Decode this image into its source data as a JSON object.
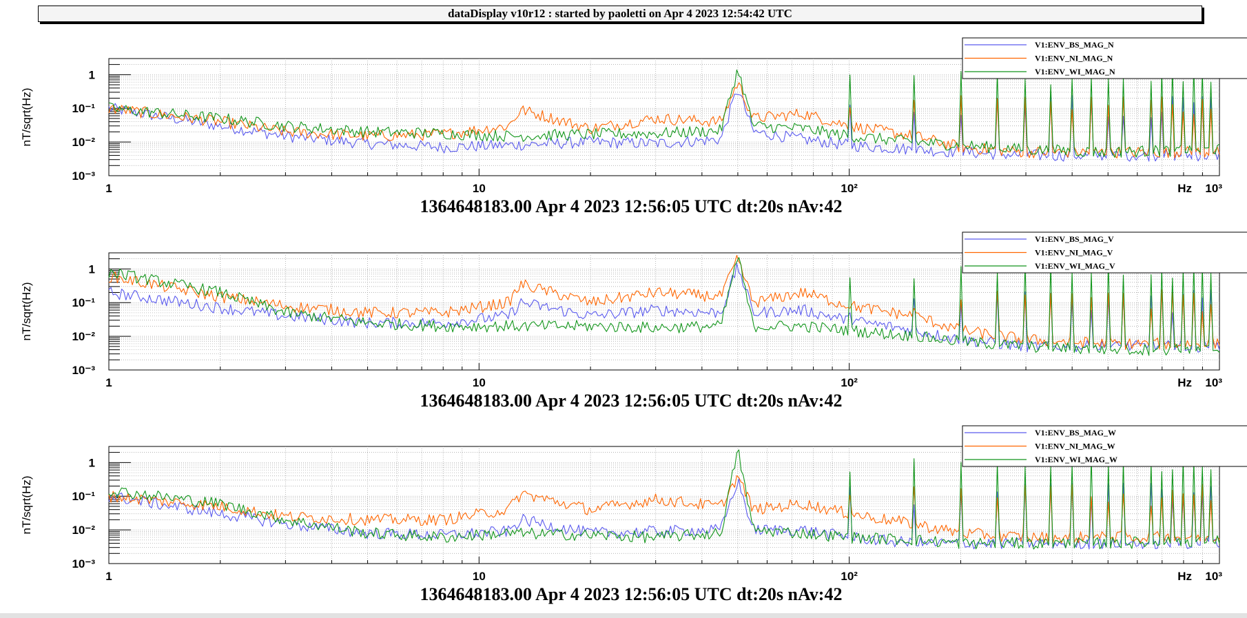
{
  "header": {
    "title": "dataDisplay v10r12 : started by paoletti on Apr  4 2023 12:54:42 UTC"
  },
  "colors": {
    "BS": "#5a5aee",
    "NI": "#ff6600",
    "WI": "#11951a"
  },
  "chart_data": [
    {
      "type": "line",
      "log_x": true,
      "log_y": true,
      "xlim": [
        1,
        1000
      ],
      "ylim": [
        0.001,
        3
      ],
      "ylabel": "nT/sqrt(Hz)",
      "xlabel": "Hz",
      "yticks": [
        "1",
        "10⁻¹",
        "10⁻²",
        "10⁻³"
      ],
      "xticks": [
        "1",
        "10",
        "10²",
        "10³"
      ],
      "subtitle": "1364648183.00 Apr 4 2023 12:56:05 UTC dt:20s nAv:42",
      "grid": true,
      "legend_position": "top-right",
      "series": [
        {
          "name": "V1:ENV_BS_MAG_N",
          "color_key": "BS",
          "x": [
            1,
            2,
            3,
            5,
            8,
            12,
            20,
            30,
            45,
            50,
            55,
            75,
            100,
            150,
            200,
            300,
            500,
            1000
          ],
          "y": [
            0.1,
            0.03,
            0.015,
            0.009,
            0.007,
            0.008,
            0.01,
            0.009,
            0.012,
            0.4,
            0.02,
            0.012,
            0.008,
            0.006,
            0.005,
            0.004,
            0.004,
            0.004
          ]
        },
        {
          "name": "V1:ENV_NI_MAG_N",
          "color_key": "NI",
          "x": [
            1,
            2,
            3,
            5,
            8,
            12,
            13,
            20,
            30,
            45,
            50,
            55,
            75,
            100,
            150,
            200,
            300,
            500,
            1000
          ],
          "y": [
            0.1,
            0.04,
            0.02,
            0.015,
            0.017,
            0.03,
            0.09,
            0.025,
            0.05,
            0.04,
            0.6,
            0.05,
            0.07,
            0.03,
            0.015,
            0.007,
            0.005,
            0.005,
            0.005
          ]
        },
        {
          "name": "V1:ENV_WI_MAG_N",
          "color_key": "WI",
          "x": [
            1,
            2,
            3,
            5,
            8,
            12,
            20,
            30,
            45,
            50,
            55,
            75,
            100,
            150,
            200,
            300,
            500,
            1000
          ],
          "y": [
            0.1,
            0.05,
            0.03,
            0.02,
            0.018,
            0.015,
            0.017,
            0.018,
            0.022,
            1.5,
            0.03,
            0.025,
            0.015,
            0.01,
            0.008,
            0.006,
            0.005,
            0.006
          ]
        }
      ]
    },
    {
      "type": "line",
      "log_x": true,
      "log_y": true,
      "xlim": [
        1,
        1000
      ],
      "ylim": [
        0.001,
        3
      ],
      "ylabel": "nT/sqrt(Hz)",
      "xlabel": "Hz",
      "yticks": [
        "1",
        "10⁻¹",
        "10⁻²",
        "10⁻³"
      ],
      "xticks": [
        "1",
        "10",
        "10²",
        "10³"
      ],
      "subtitle": "1364648183.00 Apr 4 2023 12:56:05 UTC dt:20s nAv:42",
      "grid": true,
      "legend_position": "top-right",
      "series": [
        {
          "name": "V1:ENV_BS_MAG_V",
          "color_key": "BS",
          "x": [
            1,
            2,
            3,
            5,
            8,
            12,
            13,
            20,
            30,
            45,
            50,
            55,
            75,
            100,
            150,
            200,
            300,
            500,
            1000
          ],
          "y": [
            0.2,
            0.07,
            0.04,
            0.025,
            0.025,
            0.04,
            0.1,
            0.04,
            0.06,
            0.05,
            1.2,
            0.05,
            0.06,
            0.03,
            0.015,
            0.008,
            0.005,
            0.005,
            0.005
          ]
        },
        {
          "name": "V1:ENV_NI_MAG_V",
          "color_key": "NI",
          "x": [
            1,
            2,
            3,
            5,
            8,
            12,
            13,
            20,
            30,
            45,
            50,
            55,
            75,
            100,
            150,
            200,
            300,
            500,
            1000
          ],
          "y": [
            0.6,
            0.15,
            0.08,
            0.05,
            0.05,
            0.1,
            0.35,
            0.1,
            0.2,
            0.15,
            2,
            0.1,
            0.2,
            0.08,
            0.04,
            0.015,
            0.008,
            0.006,
            0.006
          ]
        },
        {
          "name": "V1:ENV_WI_MAG_V",
          "color_key": "WI",
          "x": [
            1,
            2,
            3,
            5,
            8,
            12,
            20,
            30,
            45,
            50,
            55,
            75,
            100,
            150,
            200,
            300,
            500,
            1000
          ],
          "y": [
            0.8,
            0.2,
            0.05,
            0.025,
            0.02,
            0.02,
            0.02,
            0.018,
            0.02,
            2.5,
            0.02,
            0.02,
            0.015,
            0.01,
            0.007,
            0.005,
            0.004,
            0.004
          ]
        }
      ]
    },
    {
      "type": "line",
      "log_x": true,
      "log_y": true,
      "xlim": [
        1,
        1000
      ],
      "ylim": [
        0.001,
        3
      ],
      "ylabel": "nT/sqrt(Hz)",
      "xlabel": "Hz",
      "yticks": [
        "1",
        "10⁻¹",
        "10⁻²",
        "10⁻³"
      ],
      "xticks": [
        "1",
        "10",
        "10²",
        "10³"
      ],
      "subtitle": "1364648183.00 Apr 4 2023 12:56:05 UTC dt:20s nAv:42",
      "grid": true,
      "legend_position": "top-right",
      "series": [
        {
          "name": "V1:ENV_BS_MAG_W",
          "color_key": "BS",
          "x": [
            1,
            2,
            3,
            5,
            8,
            12,
            13,
            20,
            30,
            45,
            50,
            55,
            75,
            100,
            150,
            200,
            300,
            500,
            1000
          ],
          "y": [
            0.1,
            0.03,
            0.015,
            0.008,
            0.007,
            0.009,
            0.02,
            0.008,
            0.009,
            0.01,
            0.3,
            0.01,
            0.01,
            0.006,
            0.004,
            0.004,
            0.004,
            0.004,
            0.004
          ]
        },
        {
          "name": "V1:ENV_NI_MAG_W",
          "color_key": "NI",
          "x": [
            1,
            2,
            3,
            5,
            8,
            12,
            13,
            20,
            30,
            45,
            50,
            55,
            75,
            100,
            150,
            200,
            300,
            500,
            1000
          ],
          "y": [
            0.1,
            0.05,
            0.025,
            0.02,
            0.02,
            0.04,
            0.12,
            0.04,
            0.08,
            0.05,
            0.4,
            0.04,
            0.06,
            0.03,
            0.015,
            0.008,
            0.006,
            0.006,
            0.006
          ]
        },
        {
          "name": "V1:ENV_WI_MAG_W",
          "color_key": "WI",
          "x": [
            1,
            2,
            3,
            5,
            8,
            12,
            20,
            30,
            45,
            50,
            55,
            75,
            100,
            150,
            200,
            300,
            500,
            1000
          ],
          "y": [
            0.15,
            0.06,
            0.02,
            0.008,
            0.006,
            0.008,
            0.007,
            0.006,
            0.008,
            2.5,
            0.01,
            0.008,
            0.006,
            0.005,
            0.004,
            0.004,
            0.004,
            0.005
          ]
        }
      ]
    }
  ]
}
